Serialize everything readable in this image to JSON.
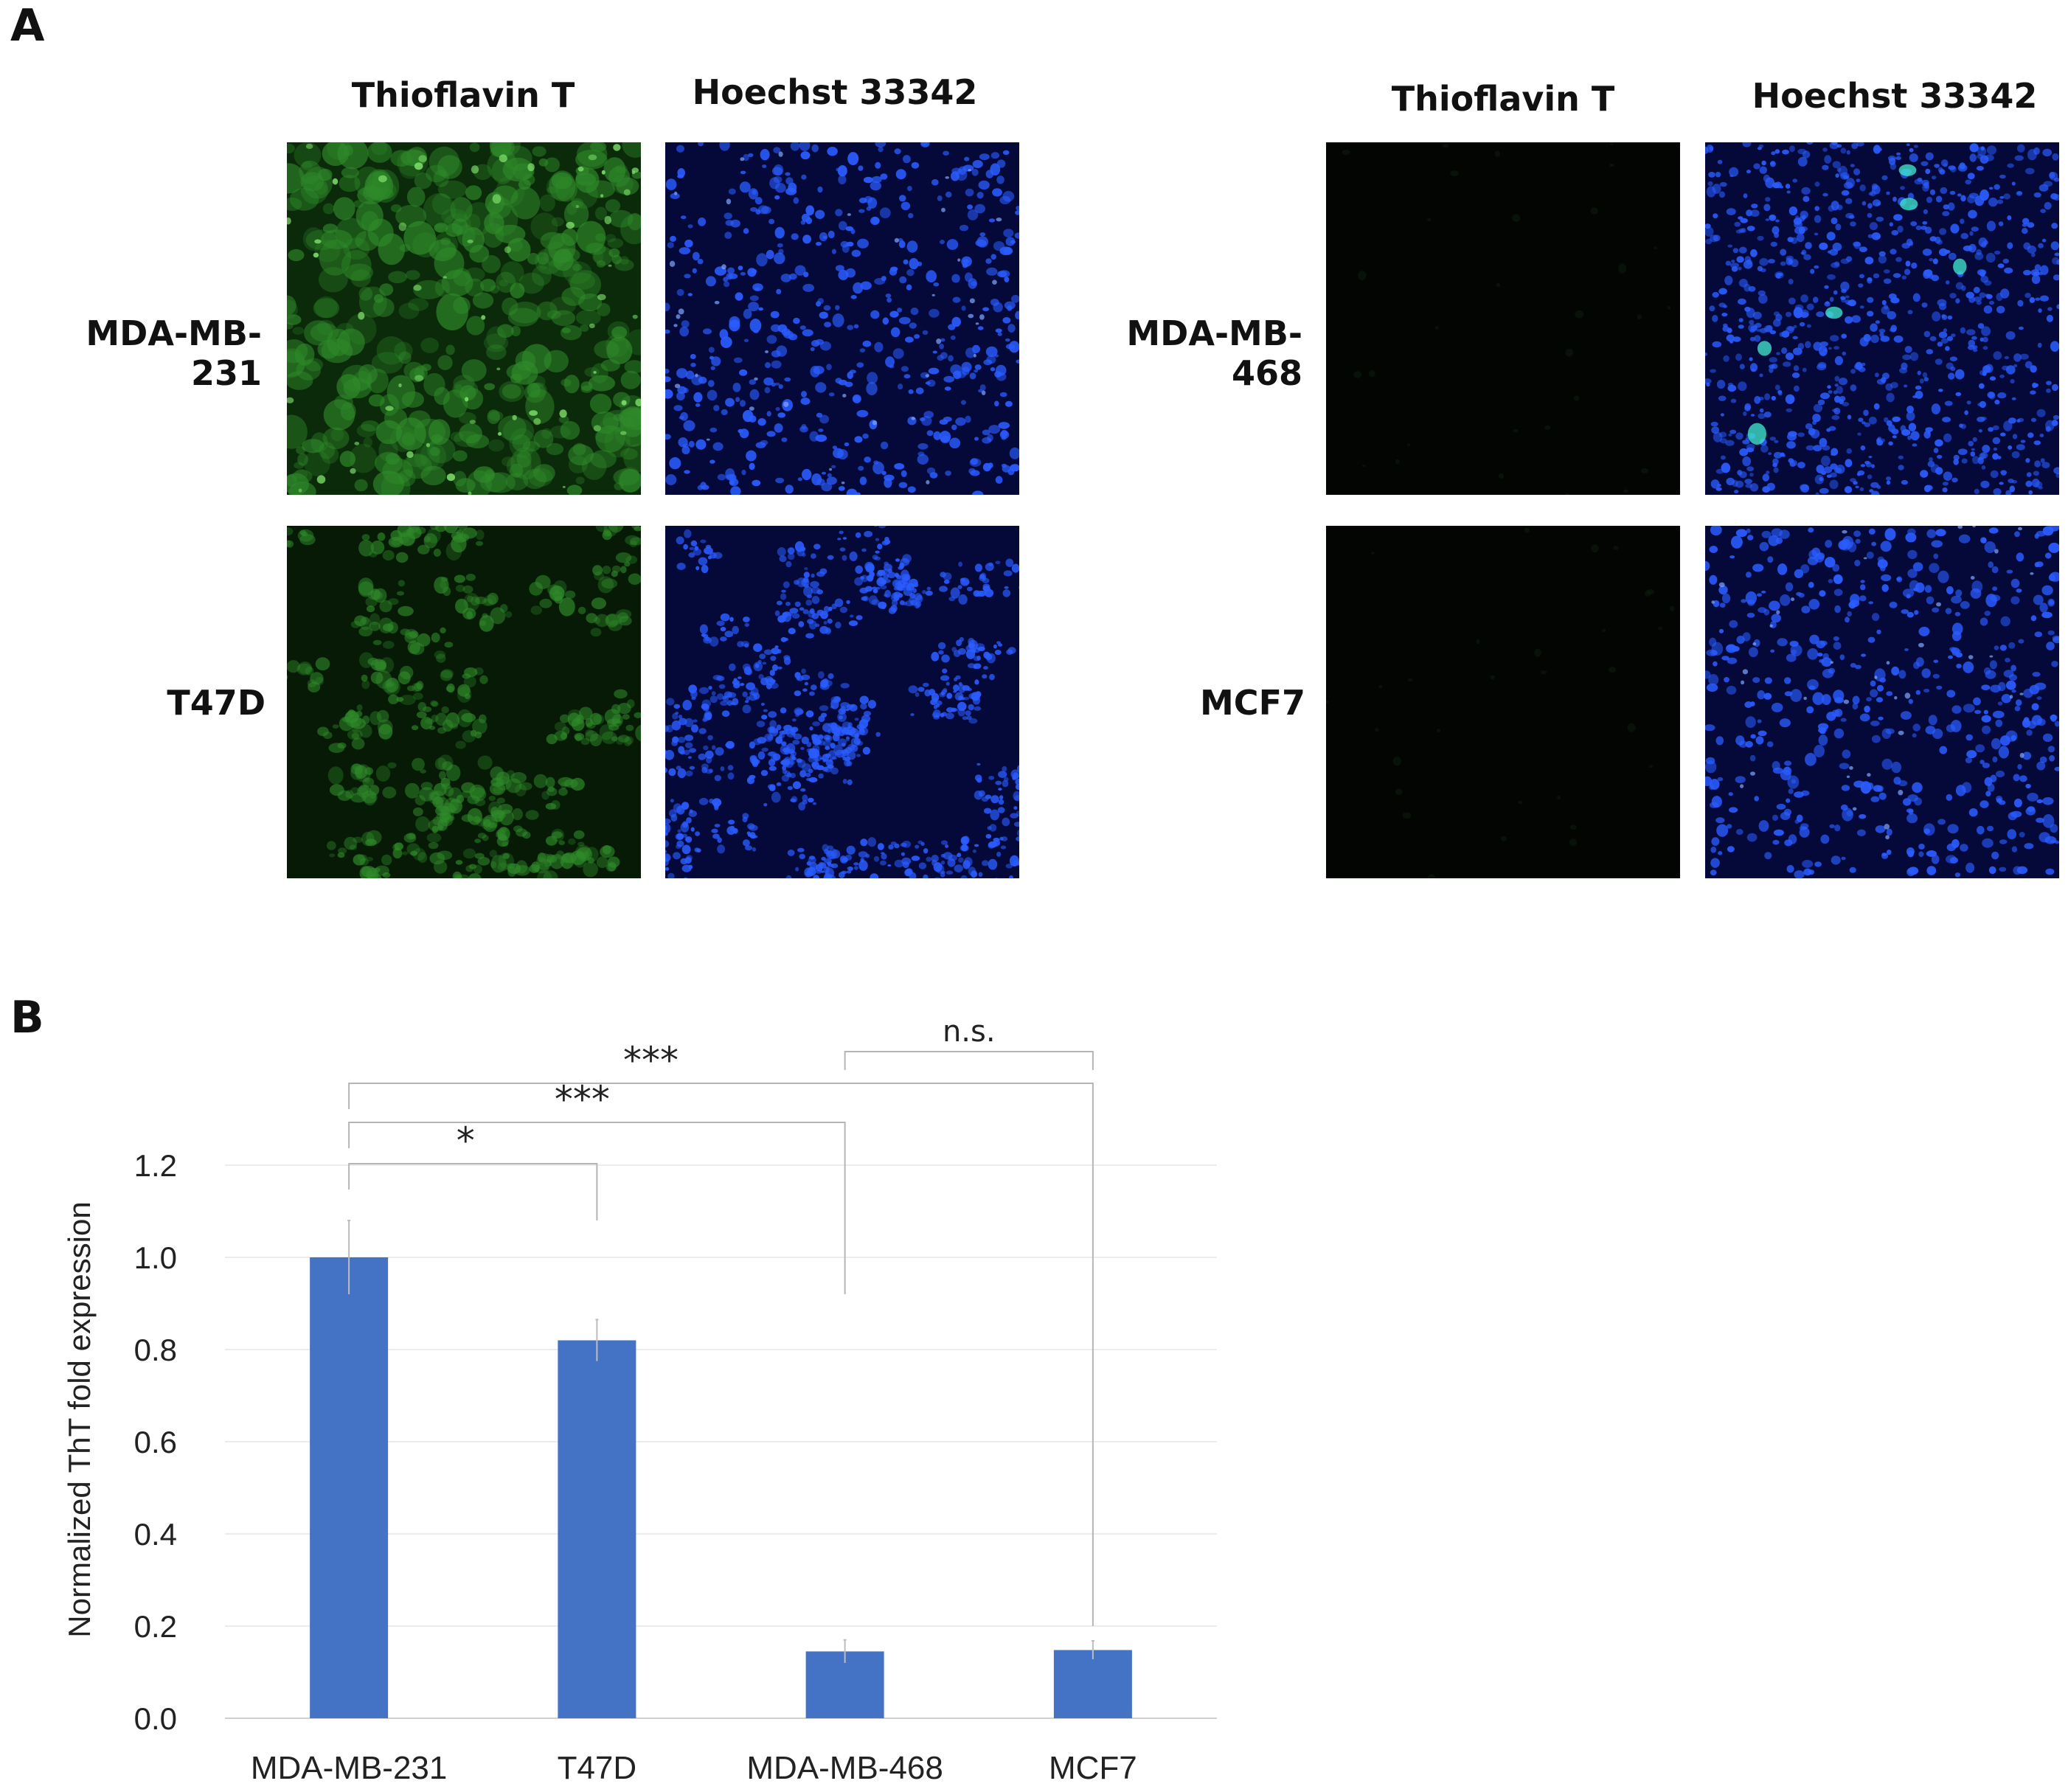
{
  "panel_a": {
    "letter": "A",
    "column_headers": [
      "Thioflavin T",
      "Hoechst 33342",
      "Thioflavin T",
      "Hoechst 33342"
    ],
    "row_labels": [
      "MDA-MB-231",
      "T47D",
      "MDA-MB-468",
      "MCF7"
    ],
    "colors": {
      "tht_stain": "#2f8a2a",
      "hoechst_stain": "#2a5cff",
      "background": "#000000"
    }
  },
  "panel_b": {
    "letter": "B"
  },
  "chart_data": {
    "type": "bar",
    "categories": [
      "MDA-MB-231",
      "T47D",
      "MDA-MB-468",
      "MCF7"
    ],
    "values": [
      1.0,
      0.82,
      0.145,
      0.148
    ],
    "error": [
      0.08,
      0.045,
      0.025,
      0.02
    ],
    "ylabel": "Normalized ThT fold expression",
    "ylim": [
      0,
      1.2
    ],
    "yticks": [
      "0.0",
      "0.2",
      "0.4",
      "0.6",
      "0.8",
      "1.0",
      "1.2"
    ],
    "grid": true,
    "bar_color": "#4472c4",
    "significance": [
      {
        "from": "MDA-MB-231",
        "to": "T47D",
        "label": "*"
      },
      {
        "from": "MDA-MB-231",
        "to": "MDA-MB-468",
        "label": "***"
      },
      {
        "from": "MDA-MB-231",
        "to": "MCF7",
        "label": "***"
      },
      {
        "from": "MDA-MB-468",
        "to": "MCF7",
        "label": "n.s."
      }
    ]
  }
}
